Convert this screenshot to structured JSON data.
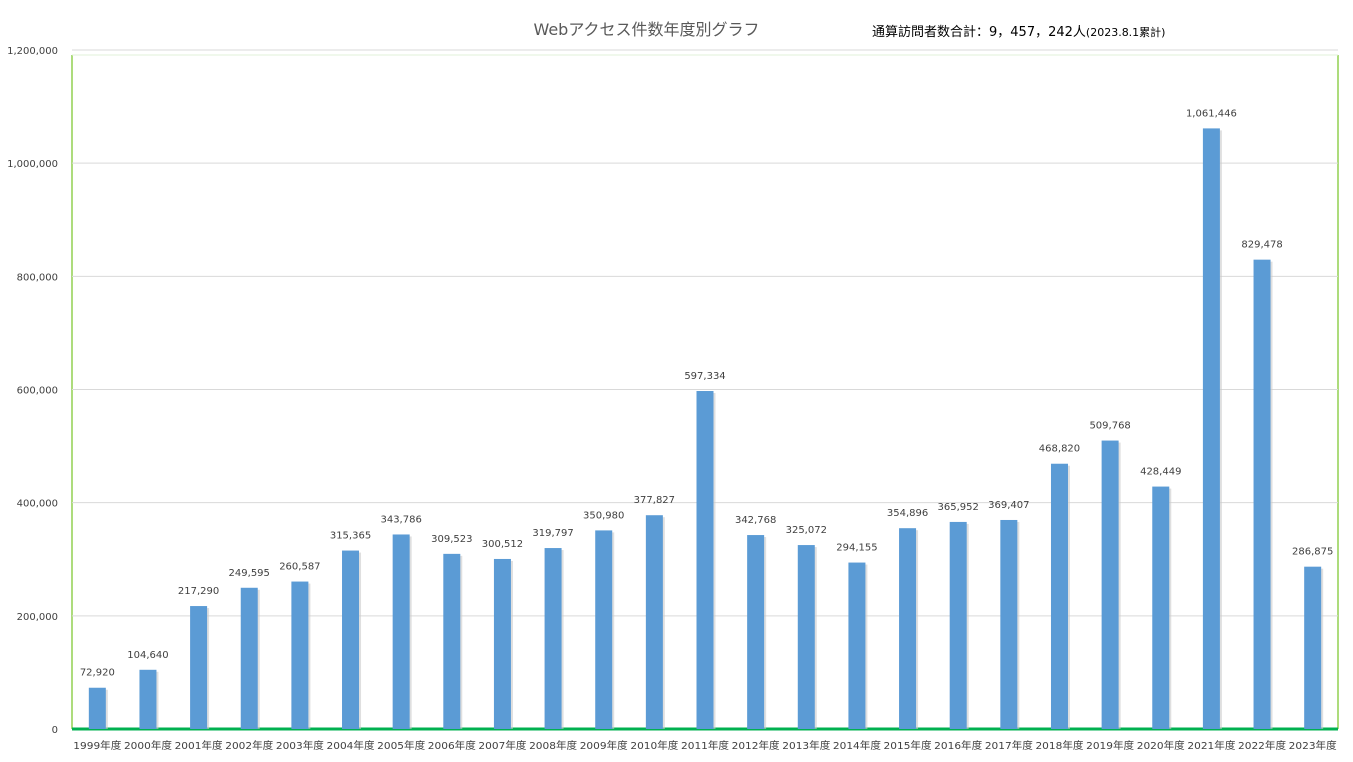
{
  "chart_data": {
    "type": "bar",
    "title": "Webアクセス件数年度別グラフ",
    "annotation": {
      "main": "通算訪問者数合計：9，457，242人",
      "suffix": "(2023.8.1累計)"
    },
    "categories": [
      "1999年度",
      "2000年度",
      "2001年度",
      "2002年度",
      "2003年度",
      "2004年度",
      "2005年度",
      "2006年度",
      "2007年度",
      "2008年度",
      "2009年度",
      "2010年度",
      "2011年度",
      "2012年度",
      "2013年度",
      "2014年度",
      "2015年度",
      "2016年度",
      "2017年度",
      "2018年度",
      "2019年度",
      "2020年度",
      "2021年度",
      "2022年度",
      "2023年度"
    ],
    "values": [
      72920,
      104640,
      217290,
      249595,
      260587,
      315365,
      343786,
      309523,
      300512,
      319797,
      350980,
      377827,
      597334,
      342768,
      325072,
      294155,
      354896,
      365952,
      369407,
      468820,
      509768,
      428449,
      1061446,
      829478,
      286875
    ],
    "value_labels": [
      "72,920",
      "104,640",
      "217,290",
      "249,595",
      "260,587",
      "315,365",
      "343,786",
      "309,523",
      "300,512",
      "319,797",
      "350,980",
      "377,827",
      "597,334",
      "342,768",
      "325,072",
      "294,155",
      "354,896",
      "365,952",
      "369,407",
      "468,820",
      "509,768",
      "428,449",
      "1,061,446",
      "829,478",
      "286,875"
    ],
    "yticks": [
      0,
      200000,
      400000,
      600000,
      800000,
      1000000,
      1200000
    ],
    "ytick_labels": [
      "0",
      "200,000",
      "400,000",
      "600,000",
      "800,000",
      "1,000,000",
      "1,200,000"
    ],
    "ylim": [
      0,
      1200000
    ],
    "xlabel": "",
    "ylabel": "",
    "grid": true,
    "legend": "none",
    "bar_color": "#5b9bd5",
    "grid_color": "#d9d9d9",
    "frame_color": "#92d050"
  }
}
